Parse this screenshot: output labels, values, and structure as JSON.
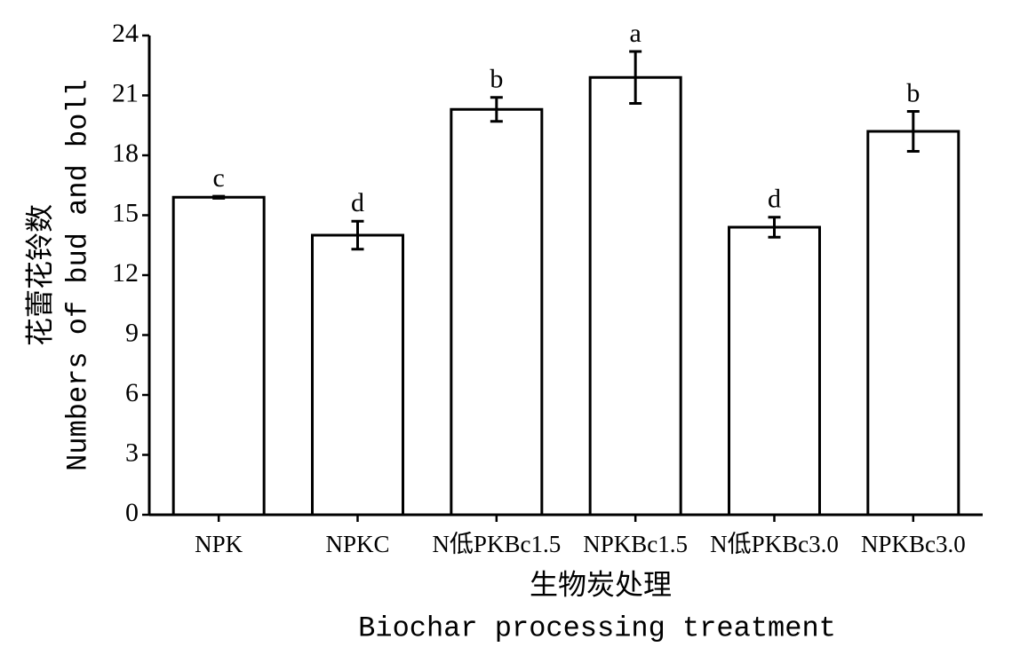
{
  "chart_data": {
    "type": "bar",
    "y_label": [
      "花蕾花铃数",
      "Numbers of bud and boll"
    ],
    "x_label": [
      "生物炭处理",
      "Biochar processing treatment"
    ],
    "categories": [
      "NPK",
      "NPKC",
      "N低PKBc1.5",
      "NPKBc1.5",
      "N低PKBc3.0",
      "NPKBc3.0"
    ],
    "values": [
      15.9,
      14.0,
      20.3,
      21.9,
      14.4,
      19.2
    ],
    "errors": [
      0.05,
      0.7,
      0.6,
      1.3,
      0.5,
      1.0
    ],
    "annotations": [
      "c",
      "d",
      "b",
      "a",
      "d",
      "b"
    ],
    "color": "#ffffff",
    "ylim": [
      0,
      24
    ],
    "yticks": [
      0,
      3,
      6,
      9,
      12,
      15,
      18,
      21,
      24
    ],
    "grid": false
  }
}
